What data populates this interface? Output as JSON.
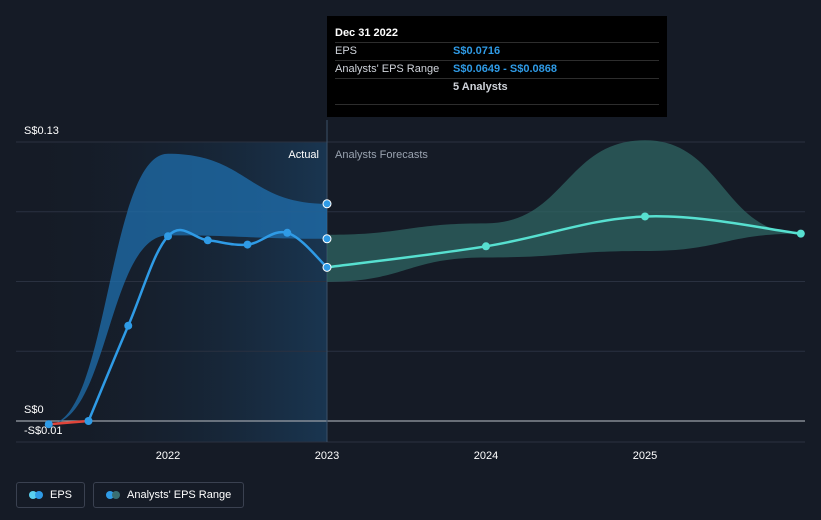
{
  "chart_data": {
    "type": "line",
    "y_axis": {
      "labels": [
        "S$0.13",
        "S$0",
        "-S$0.01"
      ],
      "ylim": [
        -0.01,
        0.13
      ]
    },
    "x_axis": {
      "ticks": [
        "2022",
        "2023",
        "2024",
        "2025"
      ],
      "xlim": [
        2021.0,
        2025.98
      ]
    },
    "sections": {
      "actual_label": "Actual",
      "forecast_label": "Analysts Forecasts",
      "split_x": 2023.0
    },
    "series": [
      {
        "name": "EPS",
        "color": "#2f9be6",
        "negative_color": "#e0453a",
        "points": [
          {
            "x": 2021.25,
            "y": -0.0015
          },
          {
            "x": 2021.5,
            "y": 0.0
          },
          {
            "x": 2021.75,
            "y": 0.0444
          },
          {
            "x": 2022.0,
            "y": 0.0861
          },
          {
            "x": 2022.25,
            "y": 0.0842
          },
          {
            "x": 2022.5,
            "y": 0.0822
          },
          {
            "x": 2022.75,
            "y": 0.0877
          },
          {
            "x": 2023.0,
            "y": 0.0716
          }
        ]
      },
      {
        "name": "Analysts' EPS Range",
        "color": "#57e0d0",
        "points": [
          {
            "x": 2023.0,
            "y": 0.0716
          },
          {
            "x": 2024.0,
            "y": 0.0814
          },
          {
            "x": 2025.0,
            "y": 0.0953
          },
          {
            "x": 2025.98,
            "y": 0.0873
          }
        ],
        "range_high": [
          {
            "x": 2023.0,
            "y": 0.0868
          },
          {
            "x": 2024.0,
            "y": 0.0921
          },
          {
            "x": 2025.0,
            "y": 0.1308
          },
          {
            "x": 2025.98,
            "y": 0.0873
          }
        ],
        "range_low": [
          {
            "x": 2023.0,
            "y": 0.0649
          },
          {
            "x": 2024.0,
            "y": 0.0762
          },
          {
            "x": 2025.0,
            "y": 0.0792
          },
          {
            "x": 2025.98,
            "y": 0.0873
          }
        ]
      }
    ],
    "history_range": {
      "high": [
        {
          "x": 2021.25,
          "y": -0.0015
        },
        {
          "x": 2022.0,
          "y": 0.1245
        },
        {
          "x": 2023.0,
          "y": 0.1012
        }
      ],
      "low": [
        {
          "x": 2021.25,
          "y": -0.0015
        },
        {
          "x": 2022.0,
          "y": 0.0865
        },
        {
          "x": 2023.0,
          "y": 0.0849
        }
      ]
    },
    "highlight_points": [
      {
        "x": 2023.0,
        "y": 0.1012
      },
      {
        "x": 2023.0,
        "y": 0.0849
      }
    ],
    "grid": true
  },
  "tooltip": {
    "title": "Dec 31 2022",
    "rows": [
      {
        "label": "EPS",
        "value": "S$0.0716"
      },
      {
        "label": "Analysts' EPS Range",
        "value": "S$0.0649 - S$0.0868"
      },
      {
        "label": "",
        "value": "5 Analysts"
      }
    ]
  },
  "legend": {
    "items": [
      {
        "label": "EPS",
        "colors": [
          "#5ad0f0",
          "#2f9be6"
        ]
      },
      {
        "label": "Analysts' EPS Range",
        "colors": [
          "#2f9be6",
          "#3a6f72"
        ]
      }
    ]
  }
}
